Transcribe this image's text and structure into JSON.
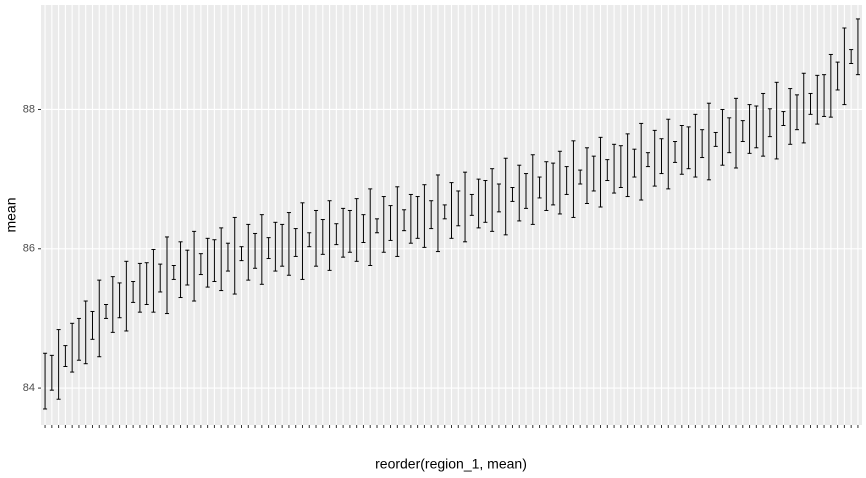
{
  "chart_data": {
    "type": "errorbar",
    "x_label": "reorder(region_1, mean)",
    "y_label": "mean",
    "categories": [
      null,
      null,
      null,
      null,
      null,
      null,
      null,
      null,
      null,
      null,
      null,
      null,
      null,
      null,
      null,
      null,
      null,
      null,
      null,
      null,
      null,
      null,
      null,
      null,
      null,
      null,
      null,
      null,
      null,
      null,
      null,
      null,
      null,
      null,
      null,
      null,
      null,
      null,
      null,
      null,
      null,
      null,
      null,
      null,
      null,
      null,
      null,
      null,
      null,
      null,
      null,
      null,
      null,
      null,
      null,
      null,
      null,
      null,
      null,
      null,
      null,
      null,
      null,
      null,
      null,
      null,
      null,
      null,
      null,
      null,
      null,
      null,
      null,
      null,
      null,
      null,
      null,
      null,
      null,
      null,
      null,
      null,
      null,
      null,
      null,
      null,
      null,
      null,
      null,
      null,
      null,
      null,
      null,
      null,
      null,
      null,
      null,
      null,
      null,
      null,
      null,
      null,
      null,
      null,
      null,
      null,
      null,
      null,
      null,
      null,
      null,
      null,
      null,
      null,
      null,
      null,
      null,
      null,
      null,
      null,
      null
    ],
    "lower": [
      83.7,
      83.97,
      83.84,
      84.31,
      84.23,
      84.4,
      84.35,
      84.7,
      84.45,
      85.0,
      84.8,
      85.01,
      84.82,
      85.23,
      85.09,
      85.2,
      85.09,
      85.38,
      85.07,
      85.56,
      85.3,
      85.48,
      85.25,
      85.63,
      85.45,
      85.53,
      85.4,
      85.68,
      85.35,
      85.83,
      85.55,
      85.72,
      85.49,
      85.86,
      85.68,
      85.75,
      85.62,
      85.89,
      85.56,
      86.03,
      85.75,
      85.92,
      85.69,
      86.06,
      85.88,
      85.95,
      85.82,
      86.09,
      85.76,
      86.23,
      85.95,
      86.12,
      85.89,
      86.26,
      86.08,
      86.15,
      86.02,
      86.29,
      85.96,
      86.43,
      86.15,
      86.33,
      86.1,
      86.48,
      86.3,
      86.38,
      86.25,
      86.53,
      86.2,
      86.68,
      86.4,
      86.58,
      86.35,
      86.73,
      86.55,
      86.63,
      86.5,
      86.78,
      86.45,
      86.93,
      86.65,
      86.83,
      86.6,
      86.98,
      86.8,
      86.88,
      86.75,
      87.03,
      86.7,
      87.18,
      86.9,
      87.08,
      86.86,
      87.24,
      87.07,
      87.15,
      87.03,
      87.31,
      86.99,
      87.47,
      87.2,
      87.38,
      87.16,
      87.54,
      87.37,
      87.45,
      87.33,
      87.61,
      87.29,
      87.77,
      87.5,
      87.71,
      87.52,
      87.93,
      87.79,
      87.9,
      87.89,
      88.28,
      88.07,
      88.66,
      88.5
    ],
    "upper": [
      84.5,
      84.47,
      84.84,
      84.61,
      84.93,
      85.0,
      85.25,
      85.1,
      85.55,
      85.2,
      85.6,
      85.51,
      85.82,
      85.53,
      85.79,
      85.8,
      85.99,
      85.78,
      86.17,
      85.76,
      86.1,
      85.98,
      86.25,
      85.93,
      86.15,
      86.13,
      86.3,
      86.08,
      86.45,
      86.03,
      86.35,
      86.22,
      86.49,
      86.16,
      86.38,
      86.35,
      86.52,
      86.29,
      86.66,
      86.23,
      86.55,
      86.42,
      86.69,
      86.36,
      86.58,
      86.55,
      86.72,
      86.49,
      86.86,
      86.43,
      86.75,
      86.62,
      86.89,
      86.56,
      86.78,
      86.75,
      86.92,
      86.69,
      87.06,
      86.63,
      86.95,
      86.83,
      87.1,
      86.78,
      87.0,
      86.98,
      87.15,
      86.93,
      87.3,
      86.88,
      87.2,
      87.08,
      87.35,
      87.03,
      87.25,
      87.23,
      87.4,
      87.18,
      87.55,
      87.13,
      87.45,
      87.33,
      87.6,
      87.28,
      87.5,
      87.48,
      87.65,
      87.43,
      87.8,
      87.38,
      87.7,
      87.58,
      87.86,
      87.54,
      87.77,
      87.75,
      87.93,
      87.71,
      88.09,
      87.67,
      88.0,
      87.88,
      88.16,
      87.84,
      88.07,
      88.05,
      88.23,
      88.01,
      88.39,
      87.97,
      88.3,
      88.21,
      88.52,
      88.23,
      88.49,
      88.5,
      88.79,
      88.68,
      89.17,
      88.86,
      89.3
    ],
    "color": "#000000",
    "ylim": [
      83.47,
      89.5
    ],
    "yticks": [
      84,
      86,
      88
    ],
    "grid": true
  }
}
